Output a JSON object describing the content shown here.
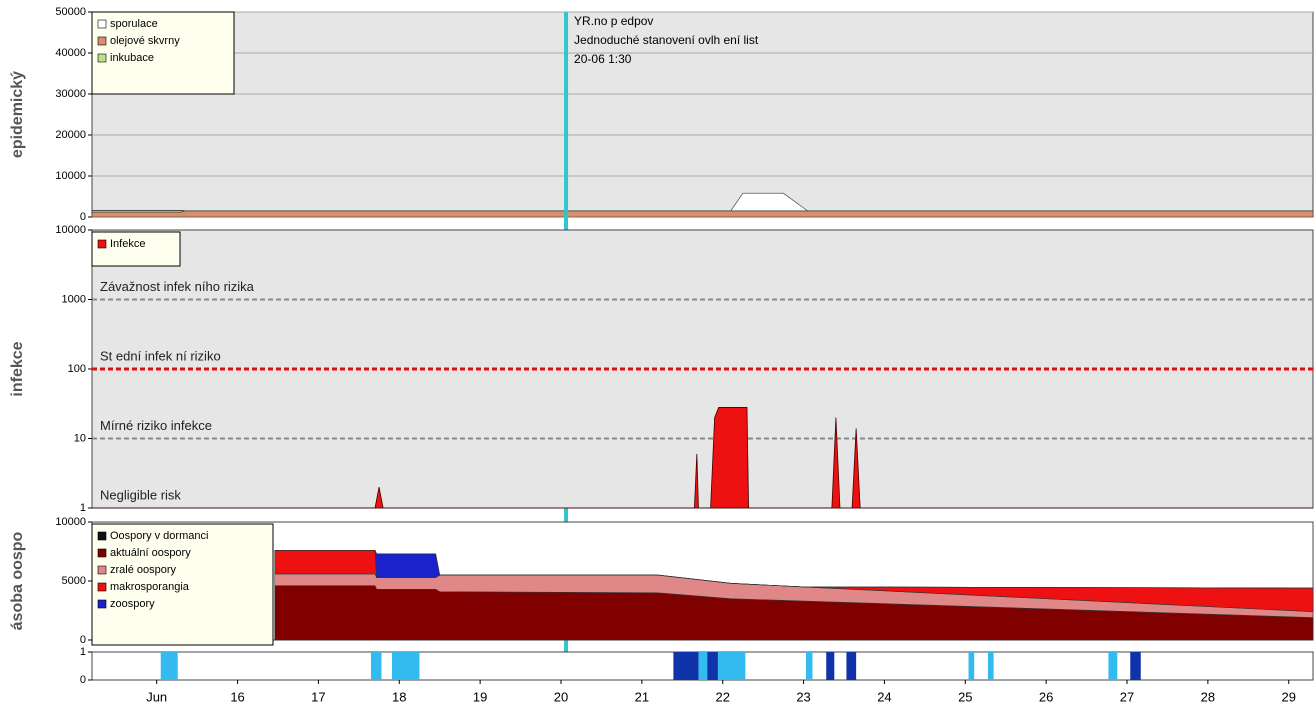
{
  "chart_data": [
    {
      "type": "area",
      "y_label": "epidemický",
      "ylim": [
        0,
        50000
      ],
      "yticks": [
        0,
        10000,
        20000,
        30000,
        40000,
        50000
      ],
      "grid": true,
      "background": "#e6e6e6",
      "legend": true,
      "annotation": [
        "YR.no p edpov",
        "Jednoduché stanovení ovlh ení list",
        "20-06 1:30"
      ],
      "marker_x": 20.0625,
      "marker_color": "#33c4cc",
      "x": [
        14.2,
        15.3,
        15.35,
        16.9,
        16.95,
        22.1,
        22.25,
        22.75,
        23.05,
        29.3
      ],
      "series": [
        {
          "name": "sporulace",
          "color": "#ffffff",
          "values": [
            0,
            0,
            0,
            0,
            0,
            0,
            4300,
            4300,
            0,
            0
          ]
        },
        {
          "name": "olejové skvrny",
          "color": "#d9906a",
          "values": [
            1200,
            1200,
            1500,
            1500,
            1500,
            1500,
            1500,
            1500,
            1500,
            1500
          ]
        },
        {
          "name": "inkubace",
          "color": "#b8e08a",
          "values": [
            400,
            400,
            0,
            0,
            0,
            0,
            0,
            0,
            0,
            0
          ]
        }
      ]
    },
    {
      "type": "log-area",
      "y_label": "infekce",
      "log": true,
      "ylim": [
        1,
        10000
      ],
      "yticks": [
        1,
        10,
        100,
        1000,
        10000
      ],
      "background": "#e6e6e6",
      "legend": true,
      "thresholds": [
        {
          "value": 1000,
          "label": "Závažnost infek ního rizika",
          "color": "#888888"
        },
        {
          "value": 100,
          "label": "St ední infek ní riziko",
          "color": "#dd1111"
        },
        {
          "value": 10,
          "label": "Mírné riziko infekce",
          "color": "#888888"
        },
        {
          "value": 1,
          "label": "Negligible risk",
          "color": null
        }
      ],
      "x": [
        14.2,
        17.7,
        17.75,
        17.8,
        21.65,
        21.68,
        21.7,
        21.85,
        21.9,
        21.95,
        22.3,
        22.32,
        23.35,
        23.4,
        23.45,
        23.6,
        23.65,
        23.7,
        29.3
      ],
      "series": [
        {
          "name": "Infekce",
          "color": "#ee1111",
          "values": [
            1,
            1,
            2,
            1,
            1,
            6,
            1,
            1,
            20,
            28,
            28,
            1,
            1,
            20,
            1,
            1,
            14,
            1,
            1
          ]
        }
      ]
    },
    {
      "type": "area",
      "y_label": "ásoba oospo",
      "ylim": [
        0,
        10000
      ],
      "yticks": [
        0,
        5000,
        10000
      ],
      "grid": false,
      "background": "#ffffff",
      "legend": true,
      "x": [
        16.46,
        17.7,
        17.72,
        18.45,
        18.5,
        21.2,
        22.1,
        23.0,
        29.3
      ],
      "series": [
        {
          "name": "Oospory v dormanci",
          "color": "#111111",
          "values": [
            0,
            0,
            0,
            0,
            0,
            0,
            0,
            0,
            0
          ]
        },
        {
          "name": "aktuální oospory",
          "color": "#800000",
          "values": [
            4600,
            4600,
            4300,
            4300,
            4100,
            4000,
            3500,
            3300,
            1900
          ]
        },
        {
          "name": "zralé oospory",
          "color": "#e08888",
          "values": [
            1000,
            1000,
            1000,
            1000,
            1400,
            1500,
            1300,
            1200,
            500
          ]
        },
        {
          "name": "makrosporangia",
          "color": "#ee1111",
          "values": [
            2000,
            2000,
            0,
            0,
            0,
            0,
            0,
            0,
            2000
          ]
        },
        {
          "name": "zoospory",
          "color": "#1a22cc",
          "values": [
            0,
            0,
            2000,
            2000,
            0,
            0,
            0,
            0,
            0
          ]
        }
      ]
    },
    {
      "type": "bar",
      "ylim": [
        0,
        1
      ],
      "yticks": [
        0,
        1
      ],
      "background": "#ffffff",
      "xlim": [
        14.2,
        29.3
      ],
      "xticks": [
        {
          "value": 15,
          "label": "Jun"
        },
        16,
        17,
        18,
        19,
        20,
        21,
        22,
        23,
        24,
        25,
        26,
        27,
        28,
        29
      ],
      "segments": [
        [
          15.05,
          15.26
        ],
        [
          17.65,
          17.78
        ],
        [
          17.91,
          18.25
        ],
        [
          21.7,
          22.28
        ],
        [
          23.03,
          23.11
        ],
        [
          25.04,
          25.11
        ],
        [
          25.28,
          25.35
        ],
        [
          26.77,
          26.88
        ],
        [
          21.39,
          21.7
        ],
        [
          21.81,
          21.94
        ],
        [
          23.28,
          23.38
        ],
        [
          23.53,
          23.65
        ],
        [
          27.04,
          27.17
        ]
      ],
      "colors": [
        "#33bbf0",
        "#33bbf0",
        "#33bbf0",
        "#33bbf0",
        "#33bbf0",
        "#33bbf0",
        "#33bbf0",
        "#33bbf0",
        "#1133aa",
        "#1133aa",
        "#1133aa",
        "#1133aa",
        "#1133aa"
      ],
      "values": [
        1,
        1,
        1,
        1,
        1,
        1,
        1,
        1,
        1,
        1,
        1,
        1,
        1
      ]
    }
  ]
}
